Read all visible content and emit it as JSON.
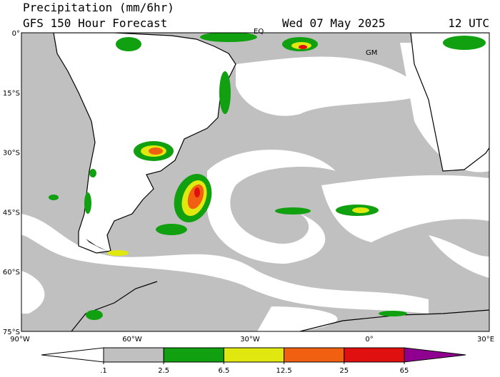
{
  "header": {
    "title": "Precipitation (mm/6hr)",
    "subtitle": "GFS 150 Hour Forecast",
    "date": "Wed 07 May 2025",
    "time": "12 UTC"
  },
  "map": {
    "lat_labels": [
      "0°",
      "15°S",
      "30°S",
      "45°S",
      "60°S",
      "75°S"
    ],
    "lon_labels": [
      "90°W",
      "60°W",
      "30°W",
      "0°",
      "30°E"
    ],
    "place_labels": [
      "EQ",
      "GM"
    ]
  },
  "colorbar": {
    "colors": [
      "#ffffff",
      "#c0c0c0",
      "#10a010",
      "#e0e810",
      "#f06010",
      "#e01010",
      "#900090"
    ],
    "ticks": [
      {
        "value": 0.1,
        "label": ".1"
      },
      2.5,
      6.5,
      12.5,
      25,
      65
    ]
  }
}
